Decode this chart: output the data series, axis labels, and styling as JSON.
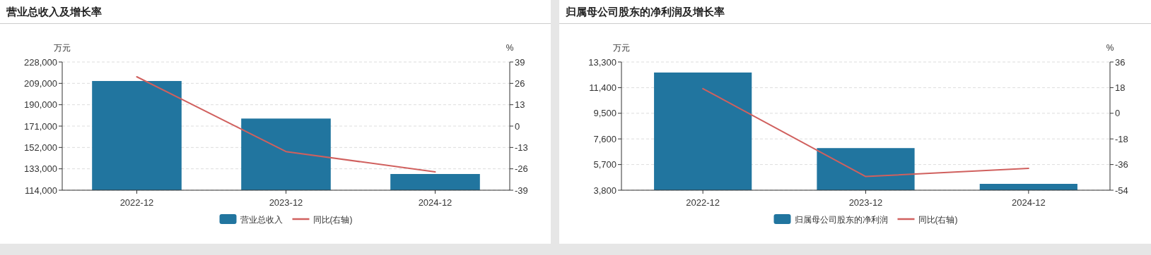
{
  "chart_data": [
    {
      "type": "bar",
      "title": "营业总收入及增长率",
      "ylabel": "万元",
      "y2label": "%",
      "categories": [
        "2022-12",
        "2023-12",
        "2024-12"
      ],
      "series": [
        {
          "name": "营业总收入",
          "color": "#21759f",
          "values": [
            211100,
            177700,
            128400
          ]
        },
        {
          "name": "同比(右轴)",
          "type": "line",
          "axis": "y2",
          "color": "#d0605e",
          "values": [
            30.0,
            -15.5,
            -27.9
          ]
        }
      ],
      "ylim": [
        114000,
        228000
      ],
      "yticks": [
        {
          "value": 114000,
          "label": "114,000"
        },
        {
          "value": 133000,
          "label": "133,000"
        },
        {
          "value": 152000,
          "label": "152,000"
        },
        {
          "value": 171000,
          "label": "171,000"
        },
        {
          "value": 190000,
          "label": "190,000"
        },
        {
          "value": 209000,
          "label": "209,000"
        },
        {
          "value": 228000,
          "label": "228,000"
        }
      ],
      "y2lim": [
        -39,
        39
      ],
      "y2ticks": [
        -39,
        -26,
        -13,
        0,
        13,
        26,
        39
      ],
      "grid": "y",
      "legend": "bottom"
    },
    {
      "type": "bar",
      "title": "归属母公司股东的净利润及增长率",
      "ylabel": "万元",
      "y2label": "%",
      "categories": [
        "2022-12",
        "2023-12",
        "2024-12"
      ],
      "series": [
        {
          "name": "归属母公司股东的净利润",
          "color": "#21759f",
          "values": [
            12520,
            6920,
            4270
          ]
        },
        {
          "name": "同比(右轴)",
          "type": "line",
          "axis": "y2",
          "color": "#d0605e",
          "values": [
            17.3,
            -44.4,
            -38.7
          ]
        }
      ],
      "ylim": [
        3800,
        13300
      ],
      "yticks": [
        {
          "value": 3800,
          "label": "3,800"
        },
        {
          "value": 5700,
          "label": "5,700"
        },
        {
          "value": 7600,
          "label": "7,600"
        },
        {
          "value": 9500,
          "label": "9,500"
        },
        {
          "value": 11400,
          "label": "11,400"
        },
        {
          "value": 13300,
          "label": "13,300"
        }
      ],
      "y2lim": [
        -54,
        36
      ],
      "y2ticks": [
        -54,
        -36,
        -18,
        0,
        18,
        36
      ],
      "grid": "y",
      "legend": "bottom"
    }
  ]
}
